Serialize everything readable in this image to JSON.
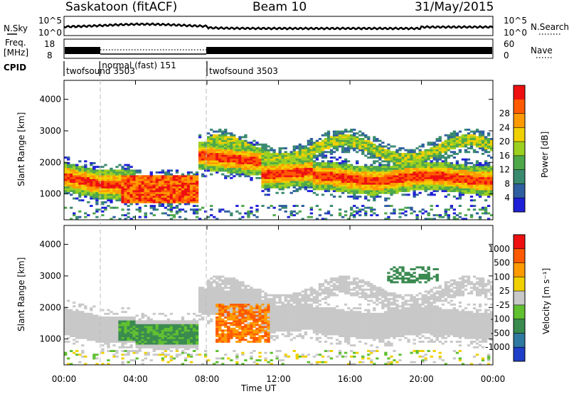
{
  "header": {
    "station": "Saskatoon (fitACF)",
    "beam": "Beam 10",
    "date": "31/May/2015"
  },
  "strips": {
    "nsky_label": "N.Sky",
    "nsearch_label": "N.Search",
    "nsky_ticks": [
      "10^5",
      "10^0"
    ],
    "freq_label_1": "Freq.",
    "freq_label_2": "[MHz]",
    "freq_ticks": [
      "18",
      "8"
    ],
    "nave_label": "Nave",
    "nave_ticks": [
      "60",
      "0"
    ],
    "cpid_label": "CPID",
    "cpid_segments": [
      {
        "name": "twofsound 3503",
        "start_h": 0,
        "end_h": 2
      },
      {
        "name": "normal (fast) 151",
        "start_h": 2,
        "end_h": 8
      },
      {
        "name": "twofsound 3503",
        "start_h": 8,
        "end_h": 24
      }
    ]
  },
  "chart_data": [
    {
      "type": "heatmap",
      "name": "power",
      "ylabel": "Slant Range [km]",
      "y_ticks": [
        "1000",
        "2000",
        "3000",
        "4000"
      ],
      "ylim": [
        180,
        4600
      ],
      "xlim": [
        0,
        24
      ],
      "colorbar_label": "Power [dB]",
      "colorbar_ticks": [
        "4",
        "8",
        "12",
        "16",
        "20",
        "24",
        "28"
      ],
      "colorbar_colors": [
        "#1f1fd8",
        "#2f5fa0",
        "#3a8a70",
        "#4ea84a",
        "#9cd020",
        "#f0d000",
        "#ff9a00",
        "#ff5a00",
        "#ee1010"
      ]
    },
    {
      "type": "heatmap",
      "name": "velocity",
      "ylabel": "Slant Range [km]",
      "y_ticks": [
        "1000",
        "2000",
        "3000",
        "4000"
      ],
      "ylim": [
        180,
        4600
      ],
      "xlim": [
        0,
        24
      ],
      "colorbar_label": "Velocity [m s⁻¹]",
      "colorbar_ticks": [
        "1000",
        "500",
        "100",
        "25",
        "-25",
        "-100",
        "-500",
        "-1000"
      ],
      "colorbar_colors": [
        "#1f3fc8",
        "#2f78a0",
        "#3a8a50",
        "#60c030",
        "#c8c8c8",
        "#f0d000",
        "#ff9a00",
        "#ff5a00",
        "#ee1010"
      ]
    }
  ],
  "x_axis": {
    "label": "Time UT",
    "ticks": [
      "00:00",
      "04:00",
      "08:00",
      "12:00",
      "16:00",
      "20:00",
      "00:00"
    ]
  }
}
